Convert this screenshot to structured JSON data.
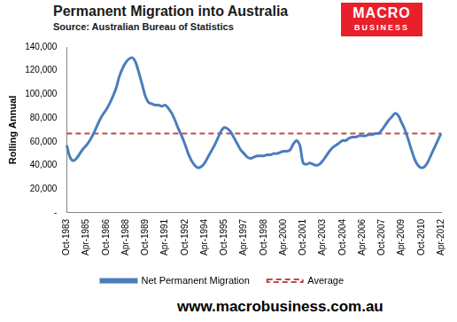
{
  "chart_data": {
    "type": "line",
    "title": "Permanent Migration into Australia",
    "subtitle": "Source: Australian Bureau of Statistics",
    "y_label": "Rolling Annual",
    "annotations": [
      "MACRO",
      "BUSINESS",
      "www.macrobusiness.com.au"
    ],
    "categories": [
      "Oct-1983",
      null,
      null,
      null,
      null,
      null,
      "Apr-1985",
      null,
      null,
      null,
      null,
      null,
      "Oct-1986",
      null,
      null,
      null,
      null,
      null,
      "Apr-1988",
      null,
      null,
      null,
      null,
      null,
      "Oct-1989",
      null,
      null,
      null,
      null,
      null,
      "Apr-1991",
      null,
      null,
      null,
      null,
      null,
      "Oct-1992",
      null,
      null,
      null,
      null,
      null,
      "Apr-1994",
      null,
      null,
      null,
      null,
      null,
      "Oct-1995",
      null,
      null,
      null,
      null,
      null,
      "Apr-1997",
      null,
      null,
      null,
      null,
      null,
      "Oct-1998",
      null,
      null,
      null,
      null,
      null,
      "Apr-2000",
      null,
      null,
      null,
      null,
      null,
      "Oct-2001",
      null,
      null,
      null,
      null,
      null,
      "Apr-2003",
      null,
      null,
      null,
      null,
      null,
      "Oct-2004",
      null,
      null,
      null,
      null,
      null,
      "Apr-2006",
      null,
      null,
      null,
      null,
      null,
      "Oct-2007",
      null,
      null,
      null,
      null,
      null,
      "Apr-2009",
      null,
      null,
      null,
      null,
      null,
      "Oct-2010",
      null,
      null,
      null,
      null,
      null,
      "Apr-2012"
    ],
    "series": [
      {
        "name": "Net Permanent Migration",
        "color": "#4a7ebb",
        "marker": "none",
        "line_style": "solid",
        "values": [
          57000,
          47000,
          44000,
          46000,
          50000,
          54000,
          57000,
          61000,
          66000,
          72000,
          78000,
          83000,
          87000,
          92000,
          98000,
          105000,
          115000,
          122000,
          127000,
          130000,
          131000,
          127000,
          118000,
          108000,
          98000,
          93000,
          92000,
          91000,
          91000,
          90000,
          91000,
          88000,
          84000,
          78000,
          71000,
          65000,
          58000,
          50000,
          44000,
          40000,
          38000,
          39000,
          42000,
          47000,
          52000,
          57000,
          63000,
          69000,
          72000,
          71000,
          68000,
          63000,
          58000,
          53000,
          50000,
          47000,
          46000,
          47000,
          48000,
          48000,
          48000,
          49000,
          49000,
          50000,
          50000,
          51000,
          52000,
          52000,
          53000,
          58000,
          61000,
          57000,
          42000,
          41000,
          42000,
          41000,
          40000,
          41000,
          44000,
          48000,
          52000,
          55000,
          57000,
          59000,
          61000,
          61000,
          63000,
          64000,
          64000,
          65000,
          65000,
          65000,
          66000,
          66000,
          67000,
          67000,
          70000,
          74000,
          78000,
          81000,
          84000,
          82000,
          76000,
          70000,
          62000,
          53000,
          45000,
          40000,
          38000,
          39000,
          43000,
          49000,
          55000,
          61000,
          67000
        ]
      },
      {
        "name": "Average",
        "color": "#be4b48",
        "marker": "none",
        "line_style": "dashed",
        "values": [
          67000,
          67000,
          67000,
          67000,
          67000,
          67000,
          67000,
          67000,
          67000,
          67000,
          67000,
          67000,
          67000,
          67000,
          67000,
          67000,
          67000,
          67000,
          67000,
          67000,
          67000,
          67000,
          67000,
          67000,
          67000,
          67000,
          67000,
          67000,
          67000,
          67000,
          67000,
          67000,
          67000,
          67000,
          67000,
          67000,
          67000,
          67000,
          67000,
          67000,
          67000,
          67000,
          67000,
          67000,
          67000,
          67000,
          67000,
          67000,
          67000,
          67000,
          67000,
          67000,
          67000,
          67000,
          67000,
          67000,
          67000,
          67000,
          67000,
          67000,
          67000,
          67000,
          67000,
          67000,
          67000,
          67000,
          67000,
          67000,
          67000,
          67000,
          67000,
          67000,
          67000,
          67000,
          67000,
          67000,
          67000,
          67000,
          67000,
          67000,
          67000,
          67000,
          67000,
          67000,
          67000,
          67000,
          67000,
          67000,
          67000,
          67000,
          67000,
          67000,
          67000,
          67000,
          67000,
          67000,
          67000,
          67000,
          67000,
          67000,
          67000,
          67000,
          67000,
          67000,
          67000,
          67000,
          67000,
          67000,
          67000,
          67000,
          67000,
          67000,
          67000,
          67000,
          67000
        ]
      }
    ],
    "ylim": [
      0,
      140000
    ],
    "yticks": [
      {
        "value": 0,
        "label": "-"
      },
      {
        "value": 20000,
        "label": "20,000"
      },
      {
        "value": 40000,
        "label": "40,000"
      },
      {
        "value": 60000,
        "label": "60,000"
      },
      {
        "value": 80000,
        "label": "80,000"
      },
      {
        "value": 100000,
        "label": "100,000"
      },
      {
        "value": 120000,
        "label": "120,000"
      },
      {
        "value": 140000,
        "label": "140,000"
      }
    ],
    "grid": false,
    "legend": "bottom"
  }
}
